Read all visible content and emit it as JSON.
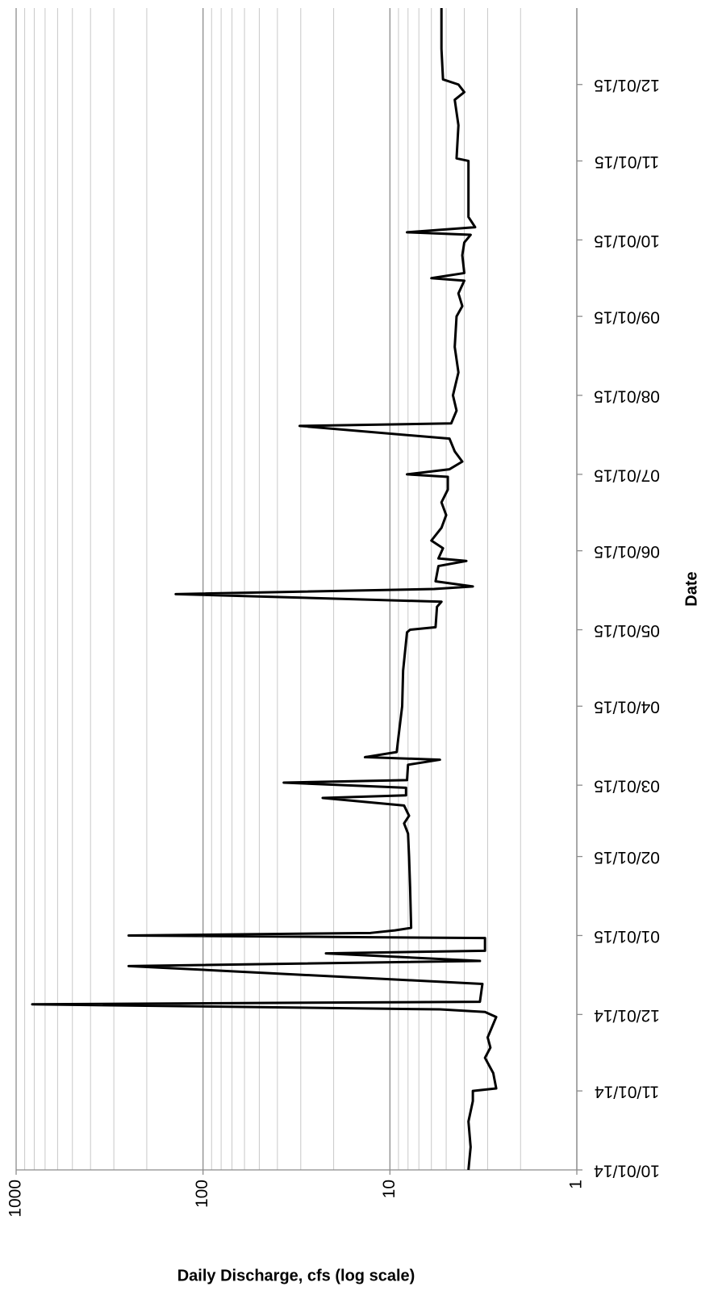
{
  "chart_data": {
    "type": "line",
    "title": null,
    "x_label": "Date",
    "y_label": "Daily Discharge, cfs (log scale)",
    "log_y": true,
    "grid": true,
    "minor_grid": true,
    "color": "#000000",
    "xlim": [
      "2014-10-01",
      "2015-12-31"
    ],
    "xticks": [
      {
        "value": "2014-10-01",
        "label": "10/01/14"
      },
      {
        "value": "2014-11-01",
        "label": "11/01/14"
      },
      {
        "value": "2014-12-01",
        "label": "12/01/14"
      },
      {
        "value": "2015-01-01",
        "label": "01/01/15"
      },
      {
        "value": "2015-02-01",
        "label": "02/01/15"
      },
      {
        "value": "2015-03-01",
        "label": "03/01/15"
      },
      {
        "value": "2015-04-01",
        "label": "04/01/15"
      },
      {
        "value": "2015-05-01",
        "label": "05/01/15"
      },
      {
        "value": "2015-06-01",
        "label": "06/01/15"
      },
      {
        "value": "2015-07-01",
        "label": "07/01/15"
      },
      {
        "value": "2015-08-01",
        "label": "08/01/15"
      },
      {
        "value": "2015-09-01",
        "label": "09/01/15"
      },
      {
        "value": "2015-10-01",
        "label": "10/01/15"
      },
      {
        "value": "2015-11-01",
        "label": "11/01/15"
      },
      {
        "value": "2015-12-01",
        "label": "12/01/15"
      }
    ],
    "ylim": [
      1,
      1000
    ],
    "yticks": [
      1,
      10,
      100,
      1000
    ],
    "x": [
      "2014-10-01",
      "2014-10-10",
      "2014-10-20",
      "2014-10-28",
      "2014-11-01",
      "2014-11-02",
      "2014-11-08",
      "2014-11-14",
      "2014-11-18",
      "2014-11-22",
      "2014-11-30",
      "2014-12-02",
      "2014-12-03",
      "2014-12-05",
      "2014-12-06",
      "2014-12-13",
      "2014-12-20",
      "2014-12-22",
      "2014-12-25",
      "2014-12-26",
      "2014-12-31",
      "2015-01-01",
      "2015-01-02",
      "2015-01-03",
      "2015-01-04",
      "2015-01-20",
      "2015-02-01",
      "2015-02-10",
      "2015-02-14",
      "2015-02-17",
      "2015-02-21",
      "2015-02-24",
      "2015-02-25",
      "2015-02-28",
      "2015-03-02",
      "2015-03-03",
      "2015-03-09",
      "2015-03-11",
      "2015-03-12",
      "2015-03-14",
      "2015-03-20",
      "2015-04-01",
      "2015-04-15",
      "2015-04-30",
      "2015-05-01",
      "2015-05-02",
      "2015-05-10",
      "2015-05-12",
      "2015-05-15",
      "2015-05-17",
      "2015-05-18",
      "2015-05-20",
      "2015-05-26",
      "2015-05-28",
      "2015-05-29",
      "2015-06-02",
      "2015-06-05",
      "2015-06-10",
      "2015-06-15",
      "2015-06-20",
      "2015-06-25",
      "2015-06-30",
      "2015-07-01",
      "2015-07-03",
      "2015-07-06",
      "2015-07-10",
      "2015-07-15",
      "2015-07-20",
      "2015-07-21",
      "2015-07-26",
      "2015-08-01",
      "2015-08-10",
      "2015-08-20",
      "2015-09-01",
      "2015-09-05",
      "2015-09-10",
      "2015-09-15",
      "2015-09-16",
      "2015-09-18",
      "2015-09-25",
      "2015-09-30",
      "2015-10-03",
      "2015-10-04",
      "2015-10-06",
      "2015-10-10",
      "2015-10-20",
      "2015-11-01",
      "2015-11-02",
      "2015-11-15",
      "2015-11-25",
      "2015-11-28",
      "2015-12-01",
      "2015-12-03",
      "2015-12-15",
      "2015-12-31"
    ],
    "values": [
      3.8,
      3.7,
      3.8,
      3.6,
      3.6,
      2.7,
      2.8,
      3.1,
      2.9,
      3.0,
      2.7,
      3.1,
      5.4,
      820,
      3.3,
      3.2,
      250,
      3.3,
      22,
      3.1,
      3.1,
      250,
      12.7,
      9.4,
      7.7,
      7.8,
      7.9,
      8.0,
      8.4,
      7.9,
      8.4,
      22.9,
      8.2,
      8.2,
      37,
      8.1,
      8.0,
      5.4,
      13.6,
      9.2,
      9.0,
      8.6,
      8.5,
      8.1,
      7.8,
      5.7,
      5.6,
      5.3,
      140,
      5.8,
      3.6,
      5.7,
      5.5,
      3.9,
      5.5,
      5.2,
      6.0,
      5.3,
      5.0,
      5.3,
      4.9,
      4.9,
      8.1,
      4.8,
      4.1,
      4.5,
      4.8,
      30.4,
      4.7,
      4.4,
      4.6,
      4.3,
      4.5,
      4.4,
      4.1,
      4.3,
      4.0,
      6.0,
      4.0,
      4.1,
      4.0,
      3.7,
      8.1,
      3.5,
      3.8,
      3.8,
      3.8,
      4.4,
      4.3,
      4.5,
      4.0,
      4.3,
      5.2,
      5.3,
      5.3
    ]
  }
}
